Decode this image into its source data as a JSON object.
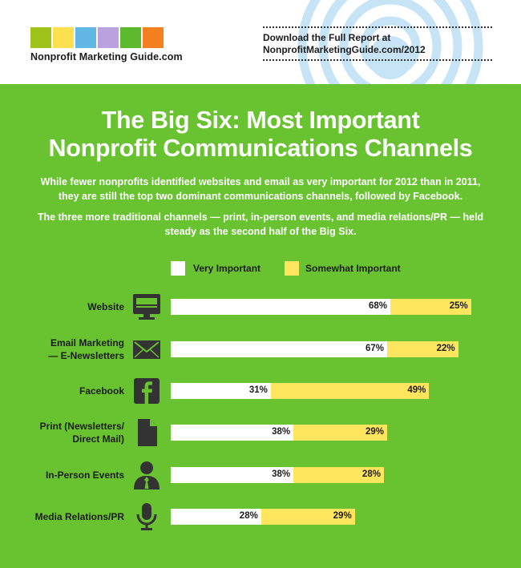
{
  "header": {
    "logo_text": "Nonprofit Marketing Guide.com",
    "logo_colors": [
      "#9ec31b",
      "#ffe04f",
      "#61b8e6",
      "#b9a2dd",
      "#5dba2f",
      "#f58020"
    ],
    "report_line1": "Download the Full Report at",
    "report_line2": "NonprofitMarketingGuide.com/2012"
  },
  "title_line1": "The Big Six: Most Important",
  "title_line2": "Nonprofit Communications Channels",
  "intro_p1": "While fewer nonprofits identified websites and email as very important for 2012 than in 2011, they are still the top two dominant communications channels, followed by Facebook.",
  "intro_p2": "The three more traditional channels — print, in-person events, and media relations/PR — held steady as the second half of the Big Six.",
  "colors": {
    "very": "#ffffff",
    "somewhat": "#fde55d",
    "background": "#69c22f",
    "icon": "#333333"
  },
  "chart_data": {
    "type": "bar",
    "orientation": "horizontal",
    "stacked": true,
    "legend_position": "top",
    "grid": false,
    "categories": [
      {
        "label": "Website",
        "icon": "monitor-icon"
      },
      {
        "label": "Email Marketing\n— E-Newsletters",
        "icon": "envelope-icon"
      },
      {
        "label": "Facebook",
        "icon": "facebook-icon"
      },
      {
        "label": "Print (Newsletters/\nDirect Mail)",
        "icon": "document-icon"
      },
      {
        "label": "In-Person Events",
        "icon": "person-icon"
      },
      {
        "label": "Media Relations/PR",
        "icon": "microphone-icon"
      }
    ],
    "series": [
      {
        "name": "Very Important",
        "values": [
          68,
          67,
          31,
          38,
          38,
          28
        ],
        "labels": [
          "68%",
          "67%",
          "31%",
          "38%",
          "38%",
          "28%"
        ]
      },
      {
        "name": "Somewhat Important",
        "values": [
          25,
          22,
          49,
          29,
          28,
          29
        ],
        "labels": [
          "25%",
          "22%",
          "49%",
          "29%",
          "28%",
          "29%"
        ]
      }
    ]
  }
}
